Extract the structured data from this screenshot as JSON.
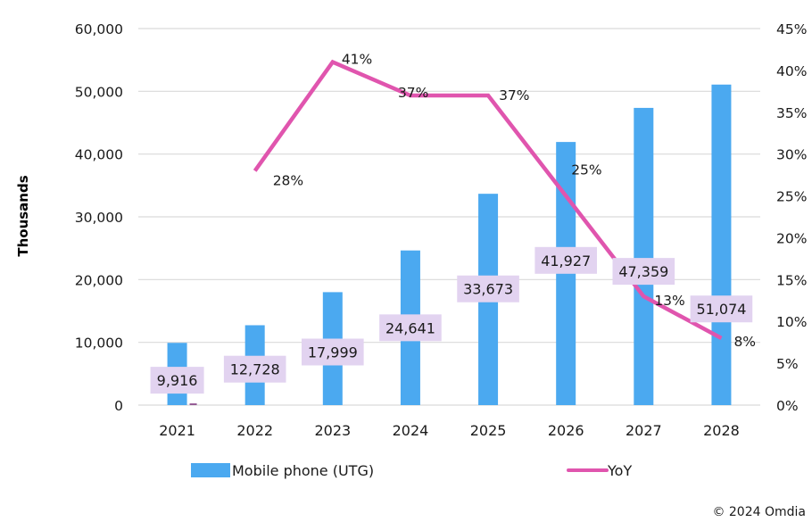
{
  "chart_data": {
    "type": "bar",
    "title": "",
    "xlabel": "",
    "ylabel": "Thousands",
    "y2label": "",
    "categories": [
      "2021",
      "2022",
      "2023",
      "2024",
      "2025",
      "2026",
      "2027",
      "2028"
    ],
    "series": [
      {
        "name": "Mobile phone (UTG)",
        "type": "bar",
        "axis": "left",
        "color": "#4BA9F0",
        "values": [
          9916,
          12728,
          17999,
          24641,
          33673,
          41927,
          47359,
          51074
        ],
        "labels": [
          "9,916",
          "12,728",
          "17,999",
          "24,641",
          "33,673",
          "41,927",
          "47,359",
          "51,074"
        ]
      },
      {
        "name": "YoY",
        "type": "line",
        "axis": "right",
        "color": "#E055AE",
        "values": [
          null,
          0.28,
          0.41,
          0.37,
          0.37,
          0.25,
          0.13,
          0.08
        ],
        "labels": [
          "",
          "28%",
          "41%",
          "37%",
          "37%",
          "25%",
          "13%",
          "8%"
        ]
      }
    ],
    "ylim": [
      0,
      60000
    ],
    "y_ticks": [
      "0",
      "10,000",
      "20,000",
      "30,000",
      "40,000",
      "50,000",
      "60,000"
    ],
    "y2lim": [
      0,
      0.45
    ],
    "y2_ticks": [
      "0%",
      "5%",
      "10%",
      "15%",
      "20%",
      "25%",
      "30%",
      "35%",
      "40%",
      "45%"
    ],
    "grid": true,
    "legend": "bottom",
    "data_label_bg": "#E2D3F0",
    "source": "© 2024 Omdia"
  }
}
